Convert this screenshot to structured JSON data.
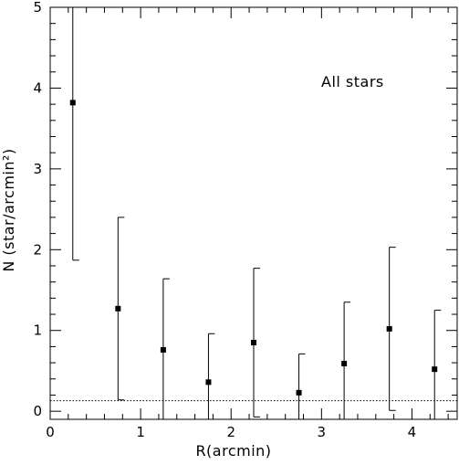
{
  "chart_data": {
    "type": "scatter",
    "title": "",
    "annotation": "All stars",
    "xlabel": "R(arcmin)",
    "ylabel": "N (star/arcmin²)",
    "xlim": [
      0,
      4.5
    ],
    "ylim": [
      -0.1,
      5
    ],
    "x_ticks": [
      0,
      1,
      2,
      3,
      4
    ],
    "y_ticks": [
      0,
      1,
      2,
      3,
      4,
      5
    ],
    "background_level": 0.13,
    "background_style": "dotted",
    "grid": false,
    "series": [
      {
        "points": [
          {
            "x": 0.25,
            "y": 3.82,
            "y_low": 1.87,
            "y_high": 5.0
          },
          {
            "x": 0.75,
            "y": 1.27,
            "y_low": 0.14,
            "y_high": 2.4
          },
          {
            "x": 1.25,
            "y": 0.76,
            "y_low": -0.1,
            "y_high": 1.64
          },
          {
            "x": 1.75,
            "y": 0.36,
            "y_low": -0.1,
            "y_high": 0.96
          },
          {
            "x": 2.25,
            "y": 0.85,
            "y_low": -0.07,
            "y_high": 1.77
          },
          {
            "x": 2.75,
            "y": 0.23,
            "y_low": -0.1,
            "y_high": 0.71
          },
          {
            "x": 3.25,
            "y": 0.59,
            "y_low": -0.1,
            "y_high": 1.35
          },
          {
            "x": 3.75,
            "y": 1.02,
            "y_low": 0.01,
            "y_high": 2.03
          },
          {
            "x": 4.25,
            "y": 0.52,
            "y_low": -0.1,
            "y_high": 1.25
          }
        ]
      }
    ]
  }
}
